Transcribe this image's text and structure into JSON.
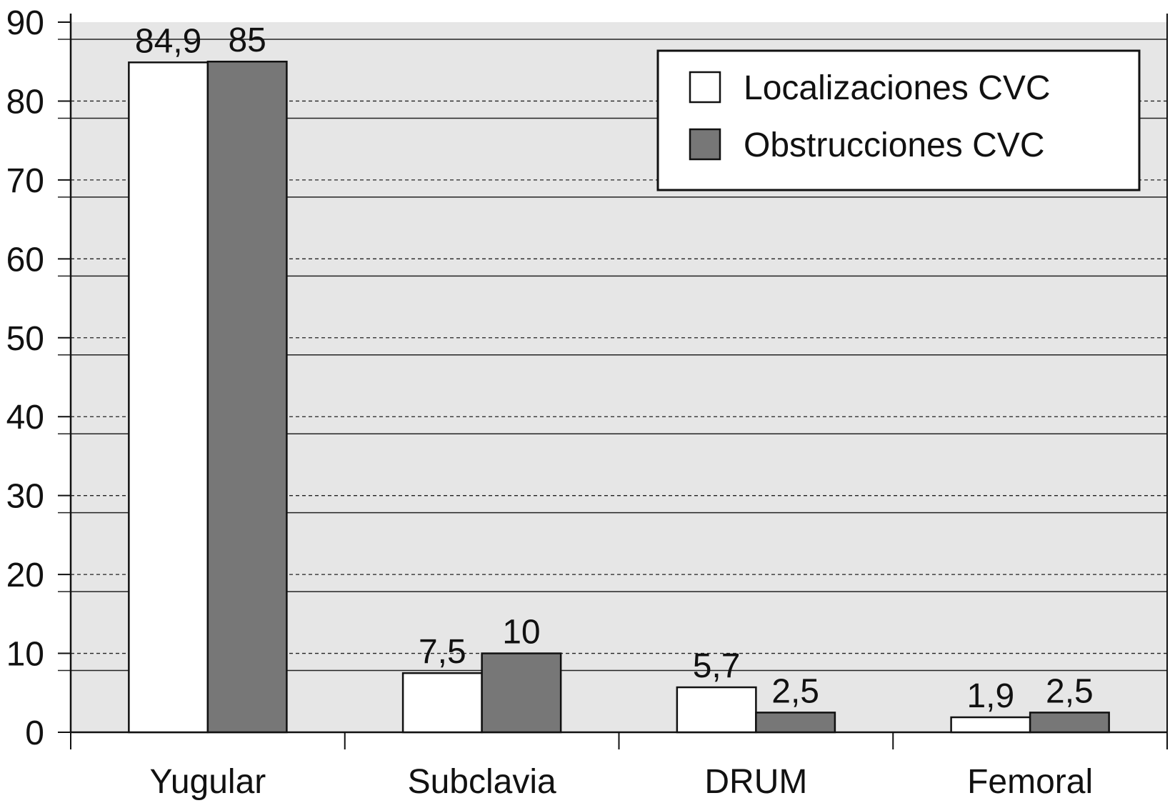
{
  "chart_data": {
    "type": "bar",
    "categories": [
      "Yugular",
      "Subclavia",
      "DRUM",
      "Femoral"
    ],
    "series": [
      {
        "name": "Localizaciones CVC",
        "color": "#ffffff",
        "values": [
          84.9,
          7.5,
          5.7,
          1.9
        ],
        "value_labels": [
          "84,9",
          "7,5",
          "5,7",
          "1,9"
        ]
      },
      {
        "name": "Obstrucciones CVC",
        "color": "#777777",
        "values": [
          85,
          10,
          2.5,
          2.5
        ],
        "value_labels": [
          "85",
          "10",
          "2,5",
          "2,5"
        ]
      }
    ],
    "ylim": [
      0,
      90
    ],
    "yticks": [
      0,
      10,
      20,
      30,
      40,
      50,
      60,
      70,
      80,
      90
    ],
    "grid": true,
    "legend": "upper right"
  }
}
